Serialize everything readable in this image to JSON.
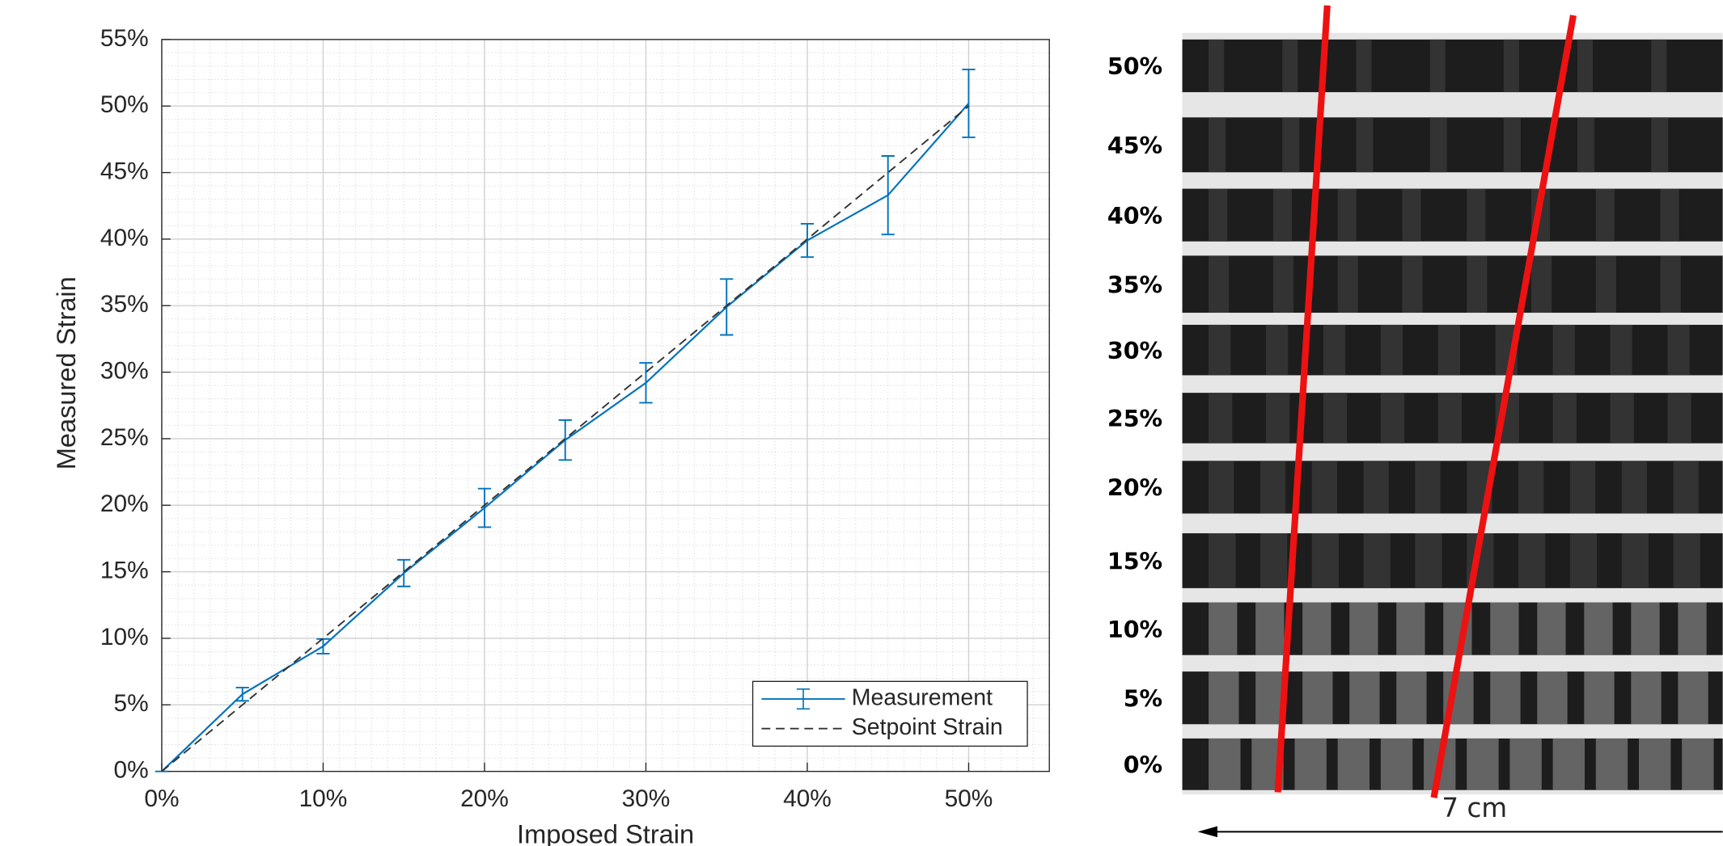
{
  "chart_data": {
    "type": "line",
    "xlabel": "Imposed Strain",
    "ylabel": "Measured Strain",
    "xlim": [
      0,
      55
    ],
    "ylim": [
      0,
      55
    ],
    "xticks": [
      {
        "value": 0,
        "label": "0%"
      },
      {
        "value": 10,
        "label": "10%"
      },
      {
        "value": 20,
        "label": "20%"
      },
      {
        "value": 30,
        "label": "30%"
      },
      {
        "value": 40,
        "label": "40%"
      },
      {
        "value": 50,
        "label": "50%"
      }
    ],
    "yticks": [
      {
        "value": 0,
        "label": "0%"
      },
      {
        "value": 5,
        "label": "5%"
      },
      {
        "value": 10,
        "label": "10%"
      },
      {
        "value": 15,
        "label": "15%"
      },
      {
        "value": 20,
        "label": "20%"
      },
      {
        "value": 25,
        "label": "25%"
      },
      {
        "value": 30,
        "label": "30%"
      },
      {
        "value": 35,
        "label": "35%"
      },
      {
        "value": 40,
        "label": "40%"
      },
      {
        "value": 45,
        "label": "45%"
      },
      {
        "value": 50,
        "label": "50%"
      },
      {
        "value": 55,
        "label": "55%"
      }
    ],
    "grid": true,
    "minor_grid": true,
    "legend": "lower right",
    "series": [
      {
        "name": "Measurement",
        "color": "#0072bd",
        "x": [
          0,
          5,
          10,
          15,
          20,
          25,
          30,
          35,
          40,
          45,
          50
        ],
        "values": [
          0,
          5.8,
          9.4,
          14.9,
          19.8,
          24.9,
          29.2,
          34.9,
          39.9,
          43.3,
          50.2
        ],
        "errors": [
          0,
          0.5,
          0.55,
          1.0,
          1.45,
          1.5,
          1.5,
          2.1,
          1.25,
          2.95,
          2.55
        ]
      },
      {
        "name": "Setpoint Strain",
        "color": "#333333",
        "dash": true,
        "x": [
          0,
          50
        ],
        "values": [
          0,
          50
        ]
      }
    ]
  },
  "image": {
    "row_labels": [
      "50%",
      "45%",
      "40%",
      "35%",
      "30%",
      "25%",
      "20%",
      "15%",
      "10%",
      "5%",
      "0%"
    ],
    "scale_label": "7 cm"
  }
}
